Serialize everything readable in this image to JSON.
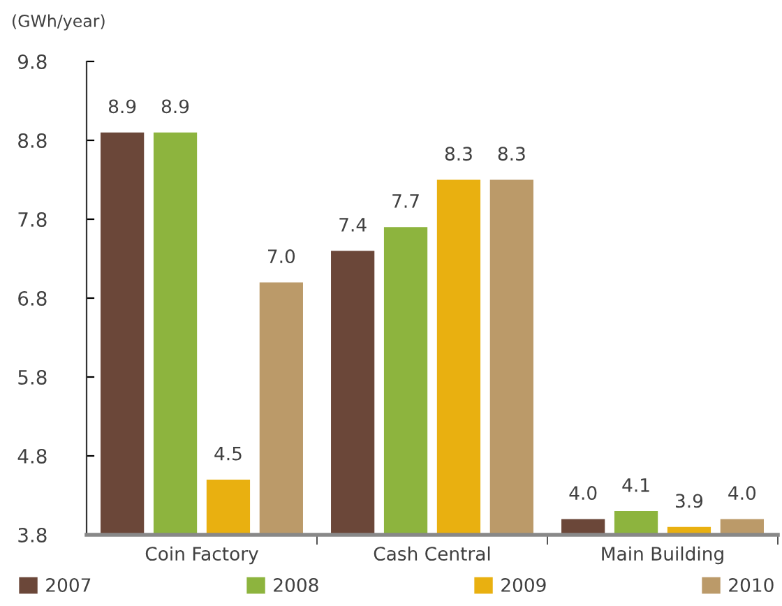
{
  "chart_data": {
    "type": "bar",
    "ylabel": "(GWh/year)",
    "categories": [
      "Coin Factory",
      "Cash Central",
      "Main Building"
    ],
    "series": [
      {
        "name": "2007",
        "color": "#6b4739",
        "values": [
          8.9,
          7.4,
          4.0
        ],
        "value_labels": [
          "8.9",
          "7.4",
          "4.0"
        ]
      },
      {
        "name": "2008",
        "color": "#8db43e",
        "values": [
          8.9,
          7.7,
          4.1
        ],
        "value_labels": [
          "8.9",
          "7.7",
          "4.1"
        ]
      },
      {
        "name": "2009",
        "color": "#e9b010",
        "values": [
          4.5,
          8.3,
          3.9
        ],
        "value_labels": [
          "4.5",
          "8.3",
          "3.9"
        ]
      },
      {
        "name": "2010",
        "color": "#bb9a69",
        "values": [
          7.0,
          8.3,
          4.0
        ],
        "value_labels": [
          "7.0",
          "8.3",
          "4.0"
        ]
      }
    ],
    "ylim": [
      3.8,
      9.8
    ],
    "yticks": [
      3.8,
      4.8,
      5.8,
      6.8,
      7.8,
      8.8,
      9.8
    ],
    "grid": false,
    "legend": "bottom"
  }
}
